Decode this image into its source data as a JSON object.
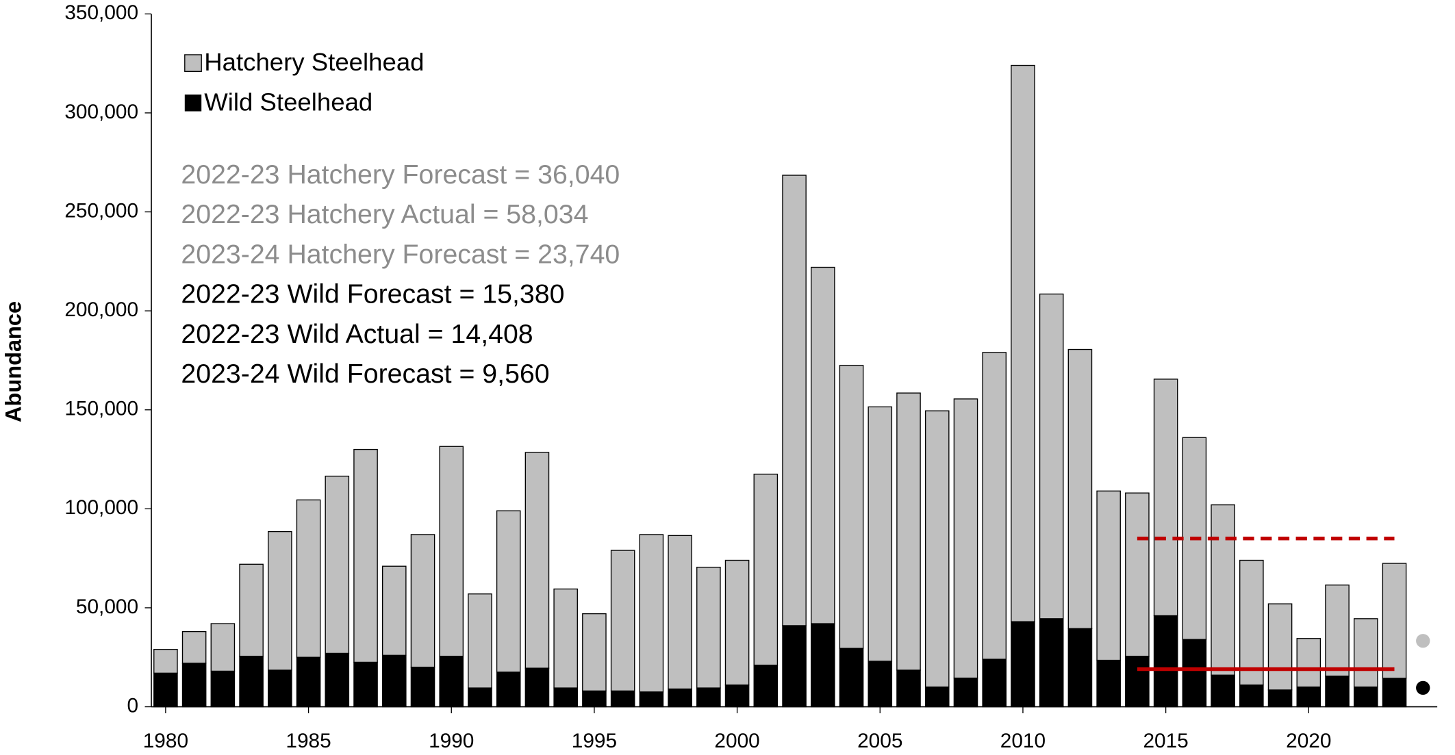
{
  "chart_data": {
    "type": "stacked_bar",
    "y_label": "Abundance",
    "x": [
      1980,
      1981,
      1982,
      1983,
      1984,
      1985,
      1986,
      1987,
      1988,
      1989,
      1990,
      1991,
      1992,
      1993,
      1994,
      1995,
      1996,
      1997,
      1998,
      1999,
      2000,
      2001,
      2002,
      2003,
      2004,
      2005,
      2006,
      2007,
      2008,
      2009,
      2010,
      2011,
      2012,
      2013,
      2014,
      2015,
      2016,
      2017,
      2018,
      2019,
      2020,
      2021,
      2022,
      2023
    ],
    "series": [
      {
        "name": "Wild Steelhead",
        "color": "#000000",
        "values": [
          17000,
          22000,
          18000,
          25500,
          18500,
          25000,
          27000,
          22500,
          26000,
          20000,
          25500,
          9500,
          17500,
          19500,
          9500,
          8000,
          8000,
          7500,
          9000,
          9500,
          11000,
          21000,
          41000,
          42000,
          29500,
          23000,
          18500,
          10000,
          14500,
          24000,
          43000,
          44500,
          39500,
          23500,
          25500,
          46000,
          34000,
          16000,
          11000,
          8500,
          10000,
          15500,
          10000,
          14408
        ]
      },
      {
        "name": "Hatchery Steelhead",
        "color": "#bfbfbf",
        "values": [
          12000,
          16000,
          24000,
          46500,
          70000,
          79500,
          89500,
          107500,
          45000,
          67000,
          106000,
          47500,
          81500,
          109000,
          50000,
          39000,
          71000,
          79500,
          77500,
          61000,
          63000,
          96500,
          227500,
          180000,
          143000,
          128500,
          140000,
          139500,
          141000,
          155000,
          281000,
          164000,
          141000,
          85500,
          82500,
          119500,
          102000,
          86000,
          63000,
          43500,
          24500,
          46000,
          34500,
          58034
        ]
      }
    ],
    "forecast_points": {
      "x": 2024,
      "wild": 9560,
      "hatchery": 23740
    },
    "reference_lines": [
      {
        "y": 85000,
        "x": [
          2014,
          2023
        ],
        "color": "#c00000",
        "dashed": true
      },
      {
        "y": 19000,
        "x": [
          2014,
          2023
        ],
        "color": "#c00000",
        "dashed": false
      }
    ],
    "annotations": [
      {
        "text": "2022-23 Hatchery Forecast = 36,040",
        "color": "#8c8c8c"
      },
      {
        "text": "2022-23 Hatchery Actual = 58,034",
        "color": "#8c8c8c"
      },
      {
        "text": "2023-24 Hatchery Forecast = 23,740",
        "color": "#8c8c8c"
      },
      {
        "text": "2022-23 Wild Forecast = 15,380",
        "color": "#000000"
      },
      {
        "text": "2022-23 Wild Actual = 14,408",
        "color": "#000000"
      },
      {
        "text": "2023-24 Wild Forecast = 9,560",
        "color": "#000000"
      }
    ],
    "xlim": [
      1979.5,
      2024.5
    ],
    "xticks": [
      1980,
      1985,
      1990,
      1995,
      2000,
      2005,
      2010,
      2015,
      2020
    ],
    "ylim": [
      0,
      350000
    ],
    "yticks": [
      0,
      {
        "value": 50000,
        "label": "50,000"
      },
      {
        "value": 100000,
        "label": "100,000"
      },
      {
        "value": 150000,
        "label": "150,000"
      },
      {
        "value": 200000,
        "label": "200,000"
      },
      {
        "value": 250000,
        "label": "250,000"
      },
      {
        "value": 300000,
        "label": "300,000"
      },
      {
        "value": 350000,
        "label": "350,000"
      }
    ]
  }
}
